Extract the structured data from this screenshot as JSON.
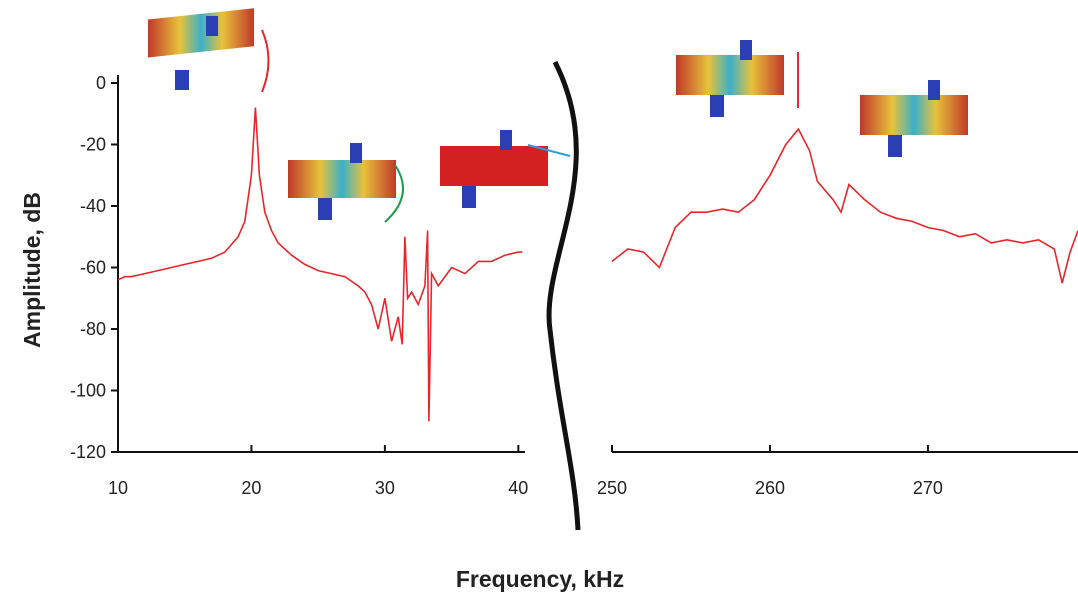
{
  "chart_data": [
    {
      "type": "line",
      "y_label": "Amplitude, dB",
      "x_label": "Frequency, kHz",
      "xlim": [
        10,
        40.5
      ],
      "xticks": [
        10,
        20,
        30,
        40
      ],
      "ylim": [
        -120,
        0
      ],
      "yticks": [
        -120,
        -100,
        -80,
        -60,
        -40,
        -20,
        0
      ],
      "series": [
        {
          "color": "#e8262a",
          "x": [
            10,
            10.5,
            11,
            12,
            13,
            14,
            15,
            16,
            17,
            18,
            19,
            19.5,
            20,
            20.3,
            20.6,
            21,
            21.5,
            22,
            23,
            24,
            25,
            26,
            27,
            28,
            28.5,
            29,
            29.5,
            30,
            30.5,
            31,
            31.3,
            31.5,
            31.7,
            32,
            32.5,
            33,
            33.2,
            33.3,
            33.5,
            34,
            35,
            36,
            37,
            38,
            39,
            40,
            40.3
          ],
          "values": [
            -64,
            -63,
            -63,
            -62,
            -61,
            -60,
            -59,
            -58,
            -57,
            -55,
            -50,
            -45,
            -30,
            -8,
            -30,
            -42,
            -48,
            -52,
            -56,
            -59,
            -61,
            -62,
            -63,
            -66,
            -68,
            -72,
            -80,
            -70,
            -84,
            -76,
            -85,
            -50,
            -70,
            -68,
            -72,
            -66,
            -48,
            -110,
            -62,
            -66,
            -60,
            -62,
            -58,
            -58,
            -56,
            -55,
            -55
          ]
        }
      ]
    },
    {
      "type": "line",
      "xlim": [
        250,
        279.5
      ],
      "xticks": [
        250,
        260,
        270
      ],
      "ylim": [
        -120,
        0
      ],
      "series": [
        {
          "color": "#e8262a",
          "x": [
            250,
            251,
            252,
            253,
            254,
            255,
            256,
            257,
            258,
            259,
            260,
            261,
            261.8,
            262.5,
            263,
            264,
            264.5,
            265,
            266,
            267,
            268,
            269,
            270,
            271,
            272,
            273,
            274,
            275,
            276,
            277,
            278,
            278.5,
            279,
            279.5
          ],
          "values": [
            -58,
            -54,
            -55,
            -60,
            -47,
            -42,
            -42,
            -41,
            -42,
            -38,
            -30,
            -20,
            -15,
            -22,
            -32,
            -38,
            -42,
            -33,
            -38,
            -42,
            -44,
            -45,
            -47,
            -48,
            -50,
            -49,
            -52,
            -51,
            -52,
            -51,
            -54,
            -65,
            -55,
            -48
          ]
        }
      ]
    }
  ]
}
